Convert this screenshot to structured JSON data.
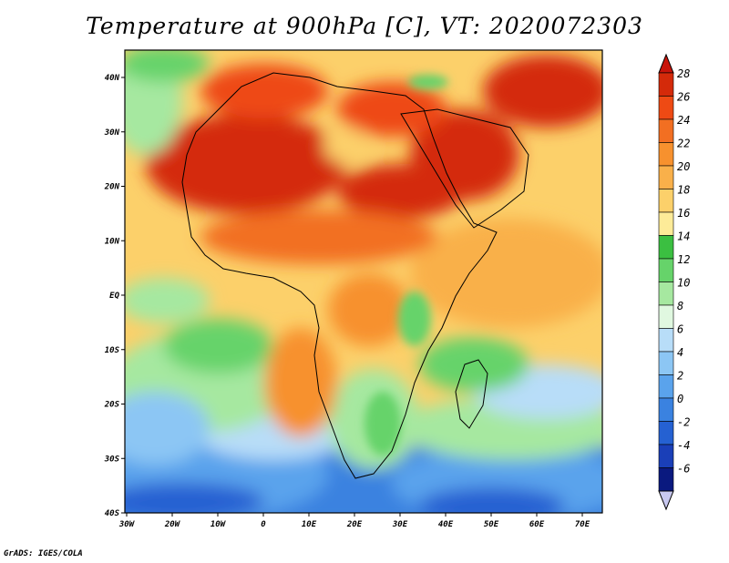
{
  "title": "Temperature at 900hPa [C], VT: 2020072303",
  "footer": "GrADS: IGES/COLA",
  "map": {
    "lon_ticks": [
      "30W",
      "20W",
      "10W",
      "0",
      "10E",
      "20E",
      "30E",
      "40E",
      "50E",
      "60E",
      "70E"
    ],
    "lat_ticks": [
      "40N",
      "30N",
      "20N",
      "10N",
      "EQ",
      "10S",
      "20S",
      "30S",
      "40S"
    ],
    "lon_range": [
      -30,
      75
    ],
    "lat_range": [
      -40,
      45
    ],
    "variable": "temperature",
    "level": "900hPa",
    "units": "C",
    "valid_time": "2020072303"
  },
  "colorbar": {
    "labels": [
      "28",
      "26",
      "24",
      "22",
      "20",
      "18",
      "16",
      "14",
      "12",
      "10",
      "8",
      "6",
      "4",
      "2",
      "0",
      "-2",
      "-4",
      "-6"
    ],
    "colors": [
      "#d42a0a",
      "#ee4a14",
      "#f26f22",
      "#f7912e",
      "#f9b04a",
      "#fcd06a",
      "#fdeb98",
      "#3bbf41",
      "#66d36a",
      "#a6e8a0",
      "#e0f8e0",
      "#b8ddf8",
      "#8cc6f4",
      "#5aa3ec",
      "#3a82e0",
      "#2561d2",
      "#1a3fb8",
      "#0a197f"
    ],
    "overflow_low_color": "#c8c8f0",
    "overflow_high_color": "#c8140a"
  },
  "colors": {
    "hot": "#d42a0a",
    "warm": "#f7912e",
    "mild": "#fcd06a",
    "green": "#66d36a",
    "cool": "#8cc6f4",
    "cold": "#2561d2",
    "border": "#000000"
  }
}
